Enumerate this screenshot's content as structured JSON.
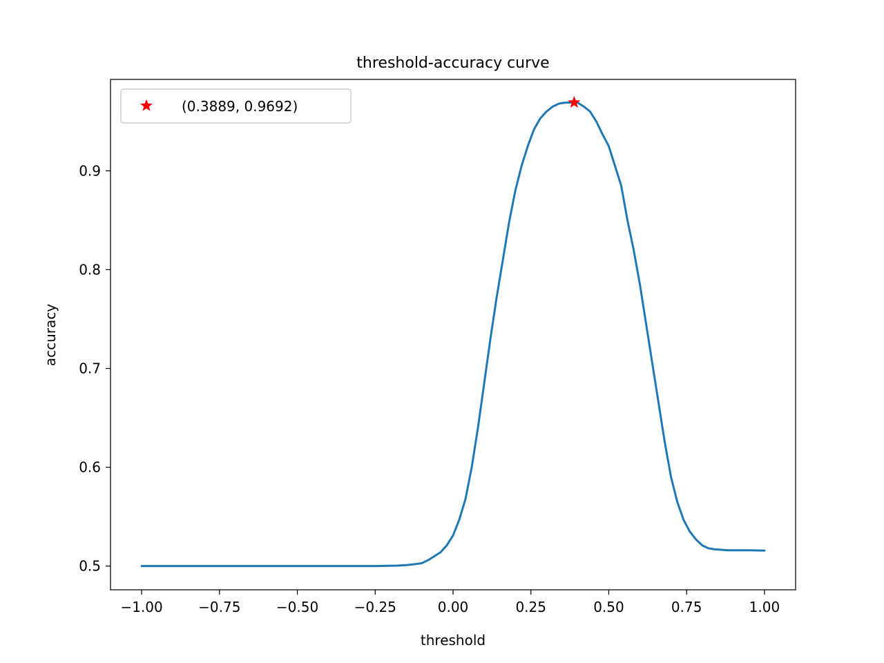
{
  "chart_data": {
    "type": "line",
    "title": "threshold-accuracy curve",
    "xlabel": "threshold",
    "ylabel": "accuracy",
    "xlim": [
      -1.1,
      1.1
    ],
    "ylim": [
      0.476,
      0.9925
    ],
    "grid": false,
    "legend_position": "top-left",
    "x_ticks": [
      -1.0,
      -0.75,
      -0.5,
      -0.25,
      0.0,
      0.25,
      0.5,
      0.75,
      1.0
    ],
    "x_tick_labels": [
      "−1.00",
      "−0.75",
      "−0.50",
      "−0.25",
      "0.00",
      "0.25",
      "0.50",
      "0.75",
      "1.00"
    ],
    "y_ticks": [
      0.5,
      0.6,
      0.7,
      0.8,
      0.9
    ],
    "y_tick_labels": [
      "0.5",
      "0.6",
      "0.7",
      "0.8",
      "0.9"
    ],
    "series": [
      {
        "color": "#1f77b4",
        "x": [
          -1.0,
          -0.75,
          -0.5,
          -0.25,
          -0.18,
          -0.15,
          -0.12,
          -0.1,
          -0.08,
          -0.06,
          -0.04,
          -0.02,
          0.0,
          0.02,
          0.04,
          0.06,
          0.08,
          0.1,
          0.12,
          0.14,
          0.16,
          0.18,
          0.2,
          0.22,
          0.24,
          0.26,
          0.28,
          0.3,
          0.32,
          0.34,
          0.36,
          0.3889,
          0.4,
          0.42,
          0.44,
          0.46,
          0.48,
          0.5,
          0.52,
          0.54,
          0.56,
          0.58,
          0.6,
          0.62,
          0.64,
          0.66,
          0.68,
          0.7,
          0.72,
          0.74,
          0.76,
          0.78,
          0.8,
          0.82,
          0.84,
          0.86,
          0.88,
          0.9,
          0.95,
          1.0
        ],
        "y": [
          0.5,
          0.5,
          0.5,
          0.5,
          0.5005,
          0.501,
          0.502,
          0.503,
          0.506,
          0.51,
          0.514,
          0.521,
          0.531,
          0.547,
          0.568,
          0.6,
          0.64,
          0.685,
          0.73,
          0.772,
          0.81,
          0.848,
          0.88,
          0.905,
          0.925,
          0.942,
          0.953,
          0.96,
          0.965,
          0.968,
          0.969,
          0.9692,
          0.969,
          0.965,
          0.96,
          0.95,
          0.937,
          0.925,
          0.905,
          0.885,
          0.85,
          0.82,
          0.785,
          0.745,
          0.705,
          0.665,
          0.625,
          0.59,
          0.565,
          0.547,
          0.535,
          0.527,
          0.521,
          0.518,
          0.517,
          0.5165,
          0.516,
          0.516,
          0.516,
          0.5157
        ]
      },
      {
        "name": "(0.3889, 0.9692)",
        "color": "#ff0000",
        "marker": "star",
        "x": [
          0.3889
        ],
        "y": [
          0.9692
        ]
      }
    ]
  }
}
